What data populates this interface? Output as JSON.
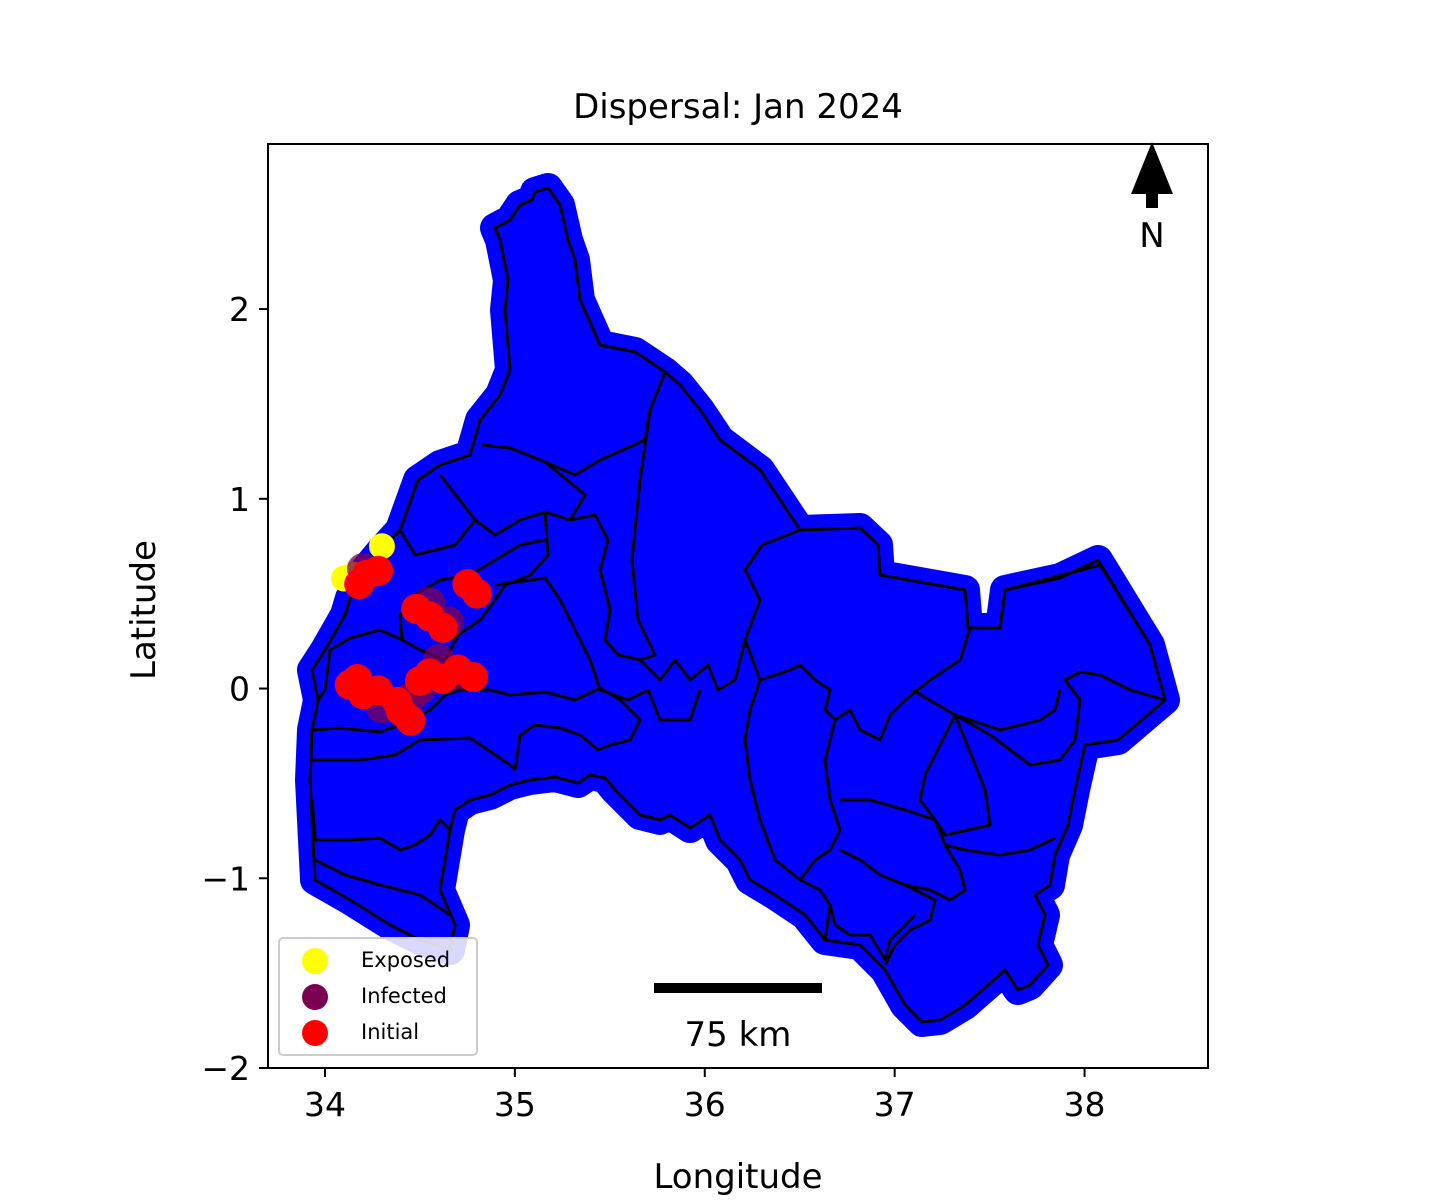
{
  "title": "Dispersal: Jan 2024",
  "xlabel": "Longitude",
  "ylabel": "Latitude",
  "xlim": [
    33.7,
    38.65
  ],
  "ylim": [
    -2.0,
    2.87
  ],
  "x_ticks": [
    {
      "value": 34,
      "label": "34"
    },
    {
      "value": 35,
      "label": "35"
    },
    {
      "value": 36,
      "label": "36"
    },
    {
      "value": 37,
      "label": "37"
    },
    {
      "value": 38,
      "label": "38"
    }
  ],
  "y_ticks": [
    {
      "value": 2,
      "label": "2"
    },
    {
      "value": 1,
      "label": "1"
    },
    {
      "value": 0,
      "label": "0"
    },
    {
      "value": -1,
      "label": "−1"
    },
    {
      "value": -2,
      "label": "−2"
    }
  ],
  "north_arrow_label": "N",
  "scale_bar_label": "75 km",
  "legend": [
    {
      "label": "Exposed",
      "color": "#ffff00"
    },
    {
      "label": "Infected",
      "color": "#7b0052"
    },
    {
      "label": "Initial",
      "color": "#ff0000"
    }
  ],
  "colors": {
    "susceptible": "#0000ff",
    "exposed": "#ffff00",
    "infected": "#7b0052",
    "initial": "#ff0000",
    "boundary": "#000000"
  },
  "chart_data": {
    "type": "scatter",
    "title": "Dispersal: Jan 2024",
    "xlabel": "Longitude",
    "ylabel": "Latitude",
    "xlim": [
      33.7,
      38.65
    ],
    "ylim": [
      -2.0,
      2.87
    ],
    "grid": false,
    "legend_position": "lower-left",
    "series": [
      {
        "name": "Exposed",
        "color": "#ffff00",
        "points": [
          [
            34.3,
            0.75
          ],
          [
            34.15,
            0.6
          ],
          [
            34.1,
            0.58
          ]
        ]
      },
      {
        "name": "Infected",
        "color": "#7b0052",
        "points": [
          [
            34.2,
            0.63
          ],
          [
            34.55,
            0.45
          ],
          [
            34.65,
            0.35
          ],
          [
            34.6,
            0.15
          ],
          [
            34.5,
            0.0
          ],
          [
            34.3,
            -0.1
          ],
          [
            34.45,
            -0.05
          ],
          [
            34.7,
            0.08
          ]
        ]
      },
      {
        "name": "Initial",
        "color": "#ff0000",
        "points": [
          [
            34.22,
            0.6
          ],
          [
            34.28,
            0.62
          ],
          [
            34.18,
            0.55
          ],
          [
            34.55,
            0.38
          ],
          [
            34.48,
            0.42
          ],
          [
            34.62,
            0.32
          ],
          [
            34.75,
            0.55
          ],
          [
            34.8,
            0.5
          ],
          [
            34.13,
            0.02
          ],
          [
            34.2,
            -0.03
          ],
          [
            34.28,
            -0.01
          ],
          [
            34.17,
            0.05
          ],
          [
            34.4,
            -0.12
          ],
          [
            34.45,
            -0.17
          ],
          [
            34.38,
            -0.07
          ],
          [
            34.55,
            0.08
          ],
          [
            34.62,
            0.05
          ],
          [
            34.7,
            0.1
          ],
          [
            34.78,
            0.06
          ],
          [
            34.5,
            0.04
          ]
        ]
      }
    ],
    "background_points_color": "#0000ff"
  }
}
